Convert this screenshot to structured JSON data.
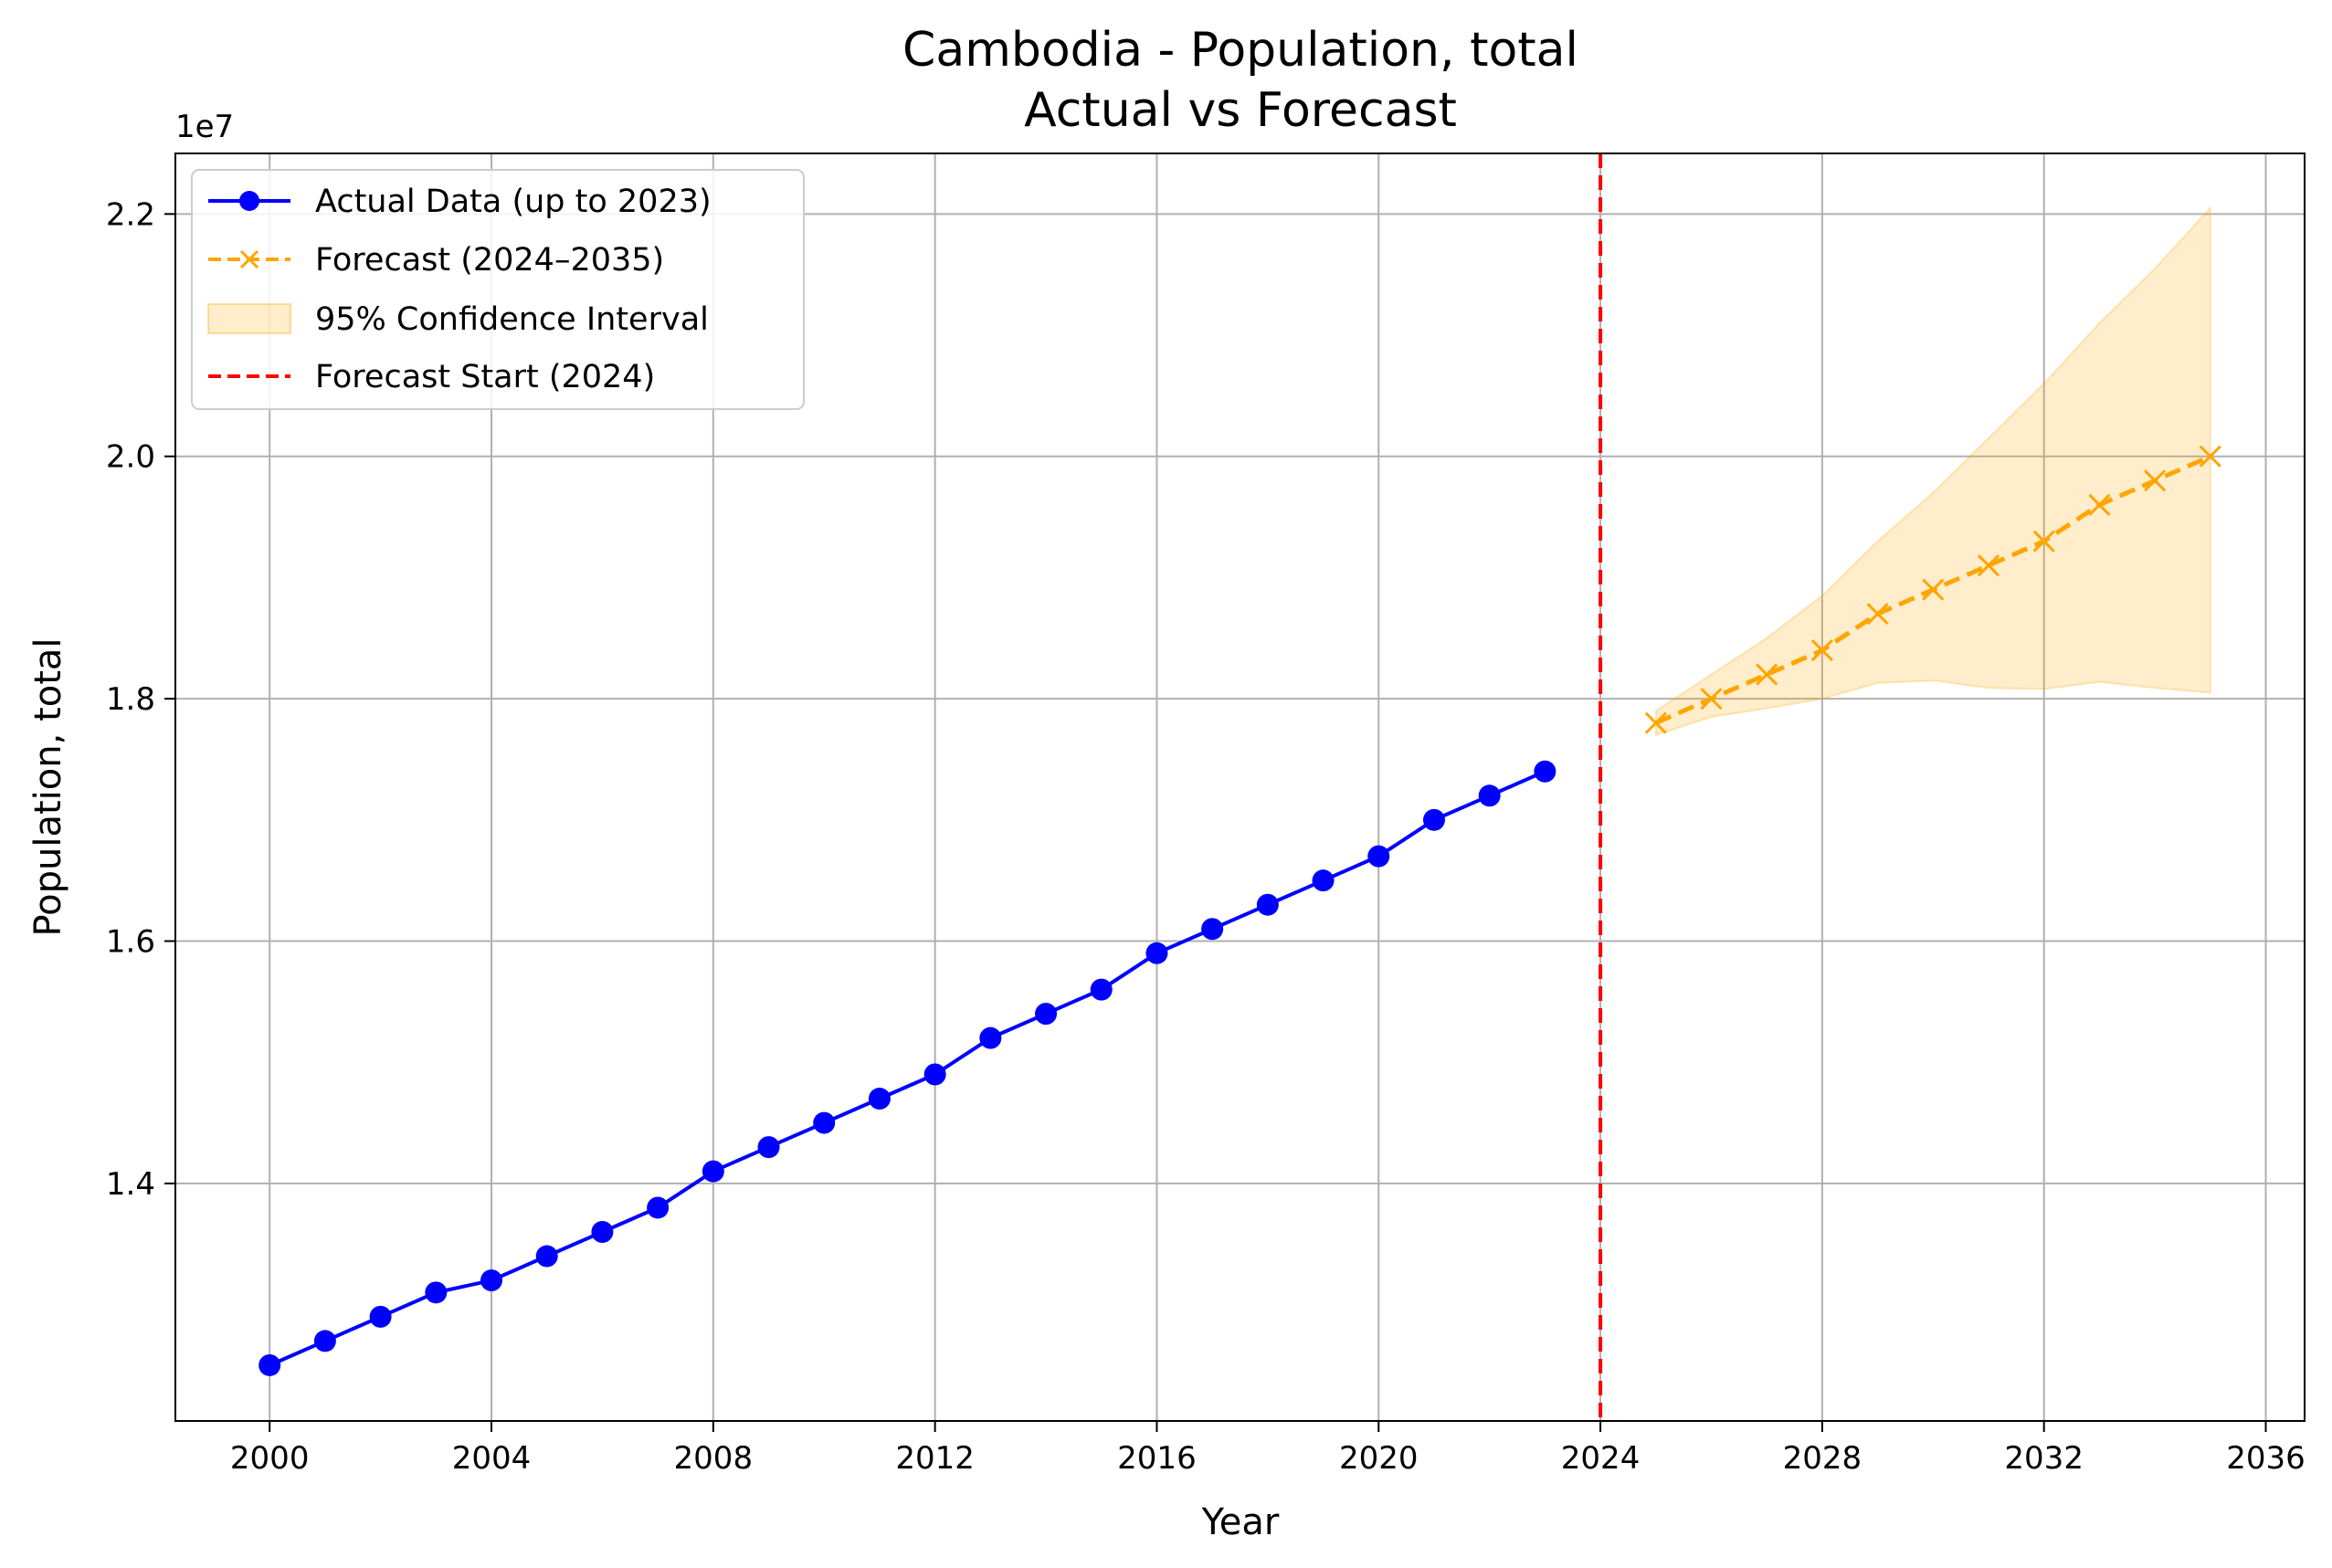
{
  "chart_data": {
    "type": "line",
    "title": "Cambodia - Population, total",
    "subtitle": "Actual vs Forecast",
    "xlabel": "Year",
    "ylabel": "Population, total",
    "y_scale_label": "1e7",
    "xlim": [
      1998.3,
      2036.7
    ],
    "ylim": [
      12040000,
      22500000
    ],
    "x_ticks": [
      2000,
      2004,
      2008,
      2012,
      2016,
      2020,
      2024,
      2028,
      2032,
      2036
    ],
    "y_ticks": [
      14000000,
      16000000,
      18000000,
      20000000,
      22000000
    ],
    "y_tick_labels": [
      "1.4",
      "1.6",
      "1.8",
      "2.0",
      "2.2"
    ],
    "grid": true,
    "legend_position": "upper-left",
    "forecast_start": {
      "x": 2024,
      "name": "Forecast Start (2024)",
      "color": "#ff0000"
    },
    "series": [
      {
        "name": "Actual Data (up to 2023)",
        "color": "#0000ff",
        "style": "solid-circle",
        "x": [
          2000,
          2001,
          2002,
          2003,
          2004,
          2005,
          2006,
          2007,
          2008,
          2009,
          2010,
          2011,
          2012,
          2013,
          2014,
          2015,
          2016,
          2017,
          2018,
          2019,
          2020,
          2021,
          2022,
          2023
        ],
        "values": [
          12500000,
          12700000,
          12900000,
          13100000,
          13200000,
          13400000,
          13600000,
          13800000,
          14100000,
          14300000,
          14500000,
          14700000,
          14900000,
          15200000,
          15400000,
          15600000,
          15900000,
          16100000,
          16300000,
          16500000,
          16700000,
          17000000,
          17200000,
          17400000
        ]
      },
      {
        "name": "Forecast (2024–2035)",
        "color": "#ffa500",
        "style": "dashed-x",
        "x": [
          2025,
          2026,
          2027,
          2028,
          2029,
          2030,
          2031,
          2032,
          2033,
          2034,
          2035
        ],
        "values": [
          17800000,
          18000000,
          18200000,
          18400000,
          18700000,
          18900000,
          19100000,
          19300000,
          19600000,
          19800000,
          20000000
        ]
      }
    ],
    "confidence_interval": {
      "name": "95% Confidence Interval",
      "color": "#ffa500",
      "x": [
        2025,
        2026,
        2027,
        2028,
        2029,
        2030,
        2031,
        2032,
        2033,
        2034,
        2035
      ],
      "lower": [
        17700000,
        17850000,
        17920000,
        18000000,
        18130000,
        18150000,
        18090000,
        18080000,
        18140000,
        18090000,
        18050000
      ],
      "upper": [
        17900000,
        18200000,
        18500000,
        18850000,
        19300000,
        19700000,
        20150000,
        20600000,
        21100000,
        21550000,
        22050000
      ]
    }
  }
}
